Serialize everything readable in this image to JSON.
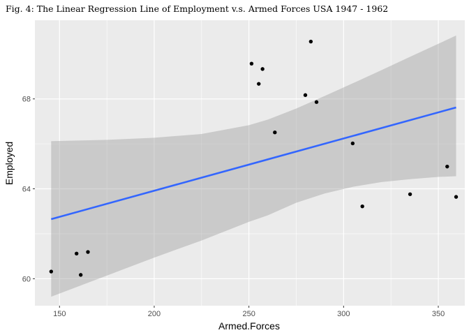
{
  "chart_data": {
    "type": "scatter",
    "title": "Fig. 4: The Linear Regression Line of Employment v.s. Armed Forces USA 1947 - 1962",
    "xlabel": "Armed.Forces",
    "ylabel": "Employed",
    "xlim": [
      137,
      364
    ],
    "ylim": [
      58.8,
      71.5
    ],
    "xticks": [
      150,
      200,
      250,
      300,
      350
    ],
    "yticks": [
      60,
      64,
      68
    ],
    "grid": true,
    "colors": {
      "panel": "#ebebeb",
      "grid_major": "#ffffff",
      "points": "#000000",
      "line": "#3366ff",
      "band": "#999999"
    },
    "points": [
      {
        "x": 145.6,
        "y": 60.32
      },
      {
        "x": 159.0,
        "y": 61.12
      },
      {
        "x": 161.2,
        "y": 60.17
      },
      {
        "x": 165.0,
        "y": 61.19
      },
      {
        "x": 251.4,
        "y": 69.57
      },
      {
        "x": 255.2,
        "y": 68.67
      },
      {
        "x": 257.2,
        "y": 69.33
      },
      {
        "x": 263.7,
        "y": 66.51
      },
      {
        "x": 279.8,
        "y": 68.17
      },
      {
        "x": 282.7,
        "y": 70.55
      },
      {
        "x": 285.7,
        "y": 67.86
      },
      {
        "x": 304.8,
        "y": 66.02
      },
      {
        "x": 309.9,
        "y": 63.22
      },
      {
        "x": 335.1,
        "y": 63.76
      },
      {
        "x": 354.7,
        "y": 64.99
      },
      {
        "x": 359.4,
        "y": 63.64
      }
    ],
    "regression": {
      "label": "lm",
      "x": [
        145.6,
        359.4
      ],
      "y": [
        62.65,
        67.62
      ]
    },
    "confidence_band": {
      "x": [
        145.6,
        175,
        200,
        225,
        250,
        260,
        275,
        290,
        305,
        320,
        335,
        350,
        359.4
      ],
      "upper": [
        66.12,
        66.18,
        66.27,
        66.44,
        66.83,
        67.08,
        67.57,
        68.13,
        68.7,
        69.28,
        69.87,
        70.45,
        70.82
      ],
      "lower": [
        59.2,
        60.14,
        60.94,
        61.7,
        62.53,
        62.82,
        63.38,
        63.79,
        64.09,
        64.3,
        64.43,
        64.53,
        64.56
      ]
    }
  }
}
